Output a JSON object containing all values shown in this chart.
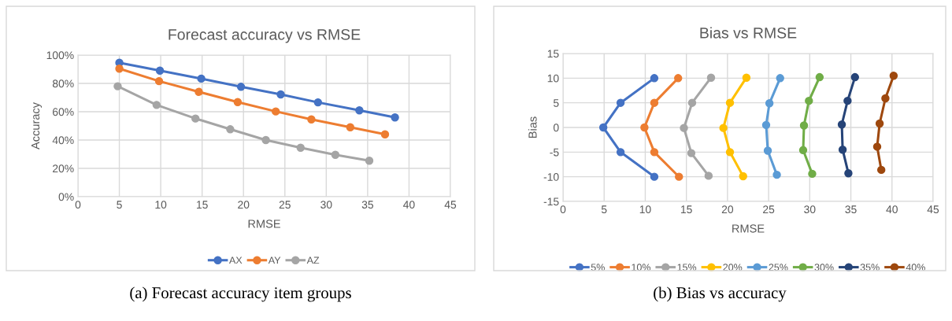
{
  "chart_data": [
    {
      "type": "line",
      "title": "Forecast accuracy vs RMSE",
      "xlabel": "RMSE",
      "ylabel": "Accuracy",
      "marker": "circle",
      "grid": true,
      "legend": "bottom",
      "xlim": [
        0,
        45
      ],
      "xticks": [
        0,
        5,
        10,
        15,
        20,
        25,
        30,
        35,
        40,
        45
      ],
      "ylim": [
        0,
        100
      ],
      "yticks": [
        {
          "value": 0,
          "label": "0%"
        },
        {
          "value": 20,
          "label": "20%"
        },
        {
          "value": 40,
          "label": "40%"
        },
        {
          "value": 60,
          "label": "60%"
        },
        {
          "value": 80,
          "label": "80%"
        },
        {
          "value": 100,
          "label": "100%"
        }
      ],
      "annotations": [
        "(a) Forecast accuracy item groups"
      ],
      "series": [
        {
          "name": "AX",
          "color": "#4472c4",
          "x": [
            5,
            9.9,
            14.9,
            19.7,
            24.5,
            29.0,
            34.0,
            38.3
          ],
          "values": [
            94.6,
            89,
            83.4,
            77.6,
            72.2,
            66.6,
            61,
            56
          ]
        },
        {
          "name": "AY",
          "color": "#ed7d31",
          "x": [
            5,
            9.8,
            14.6,
            19.3,
            23.9,
            28.2,
            32.9,
            37.1
          ],
          "values": [
            90.4,
            81.6,
            74,
            66.8,
            60.2,
            54.6,
            49,
            44
          ]
        },
        {
          "name": "AZ",
          "color": "#a5a5a5",
          "x": [
            4.8,
            9.5,
            14.2,
            18.4,
            22.7,
            26.9,
            31.1,
            35.2
          ],
          "values": [
            78,
            64.8,
            55.2,
            47.6,
            40,
            34.6,
            29.6,
            25.4
          ]
        }
      ]
    },
    {
      "type": "line",
      "title": "Bias vs RMSE",
      "xlabel": "RMSE",
      "ylabel": "Bias",
      "marker": "circle",
      "grid": true,
      "legend": "bottom",
      "xlim": [
        0,
        45
      ],
      "xticks": [
        0,
        5,
        10,
        15,
        20,
        25,
        30,
        35,
        40,
        45
      ],
      "ylim": [
        -15,
        15
      ],
      "yticks": [
        -15,
        -10,
        -5,
        0,
        5,
        10,
        15
      ],
      "annotations": [
        "(b) Bias vs accuracy"
      ],
      "series": [
        {
          "name": "5%",
          "color": "#4472c4",
          "x": [
            11.1,
            7.0,
            4.9,
            7.0,
            11.1
          ],
          "values": [
            10,
            5,
            0,
            -5,
            -10
          ]
        },
        {
          "name": "10%",
          "color": "#ed7d31",
          "x": [
            14.0,
            11.1,
            9.9,
            11.1,
            14.1
          ],
          "values": [
            10,
            5,
            0,
            -5,
            -10
          ]
        },
        {
          "name": "15%",
          "color": "#a5a5a5",
          "x": [
            18.0,
            15.7,
            14.7,
            15.6,
            17.7
          ],
          "values": [
            10.1,
            5,
            -0.1,
            -5.2,
            -9.8
          ]
        },
        {
          "name": "20%",
          "color": "#ffc000",
          "x": [
            22.3,
            20.3,
            19.5,
            20.3,
            21.9
          ],
          "values": [
            10.1,
            5,
            -0.1,
            -5,
            -9.9
          ]
        },
        {
          "name": "25%",
          "color": "#5b9bd5",
          "x": [
            26.4,
            25.1,
            24.7,
            24.9,
            26.0
          ],
          "values": [
            10,
            4.9,
            0.5,
            -4.7,
            -9.6
          ]
        },
        {
          "name": "30%",
          "color": "#70ad47",
          "x": [
            31.2,
            29.9,
            29.3,
            29.2,
            30.3
          ],
          "values": [
            10.2,
            5.4,
            0.4,
            -4.6,
            -9.4
          ]
        },
        {
          "name": "35%",
          "color": "#264478",
          "x": [
            35.5,
            34.6,
            33.9,
            34.0,
            34.7
          ],
          "values": [
            10.2,
            5.4,
            0.6,
            -4.5,
            -9.3
          ]
        },
        {
          "name": "40%",
          "color": "#9e480e",
          "x": [
            40.2,
            39.2,
            38.5,
            38.2,
            38.7
          ],
          "values": [
            10.5,
            5.9,
            0.8,
            -3.9,
            -8.6
          ]
        }
      ]
    }
  ]
}
